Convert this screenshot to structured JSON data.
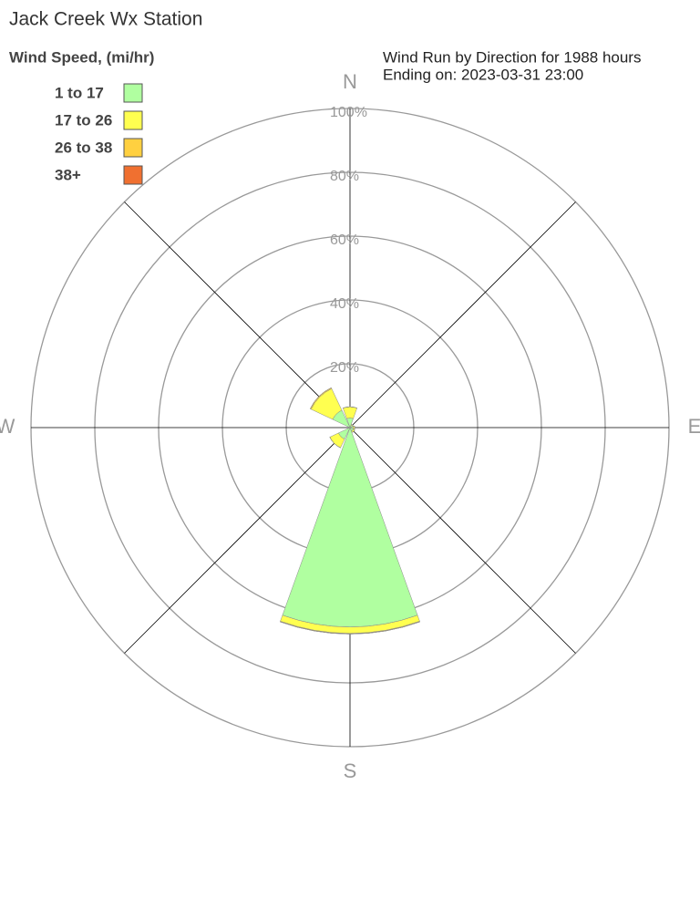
{
  "chart_data": {
    "type": "windrose",
    "title": "Jack Creek Wx Station",
    "legend_title": "Wind Speed, (mi/hr)",
    "subtitle": "Wind Run by Direction for 1988 hours",
    "subtitle2": "Ending on: 2023-03-31 23:00",
    "categories": [
      "N",
      null,
      "E",
      null,
      "S",
      null,
      "W",
      null
    ],
    "series": [
      {
        "name": "1 to 17",
        "color": "#b0ffa0",
        "values": [
          3,
          0.8,
          1,
          1.2,
          62.5,
          4,
          0.3,
          6
        ]
      },
      {
        "name": "17 to 26",
        "color": "#ffff50",
        "values": [
          3.5,
          0.3,
          0.5,
          0.5,
          2,
          3,
          0.2,
          7.5
        ]
      },
      {
        "name": "26 to 38",
        "color": "#ffd040",
        "values": [
          0,
          0,
          0,
          0,
          0.2,
          0,
          0,
          0.3
        ]
      },
      {
        "name": "38+",
        "color": "#f07030",
        "values": [
          0,
          0,
          0,
          0,
          0,
          0,
          0,
          0
        ]
      }
    ],
    "rlim": [
      0,
      100
    ],
    "rticks": [
      {
        "value": 20,
        "label": "20%"
      },
      {
        "value": 40,
        "label": "40%"
      },
      {
        "value": 60,
        "label": "60%"
      },
      {
        "value": 80,
        "label": "80%"
      },
      {
        "value": 100,
        "label": "100%"
      }
    ],
    "grid": true
  }
}
